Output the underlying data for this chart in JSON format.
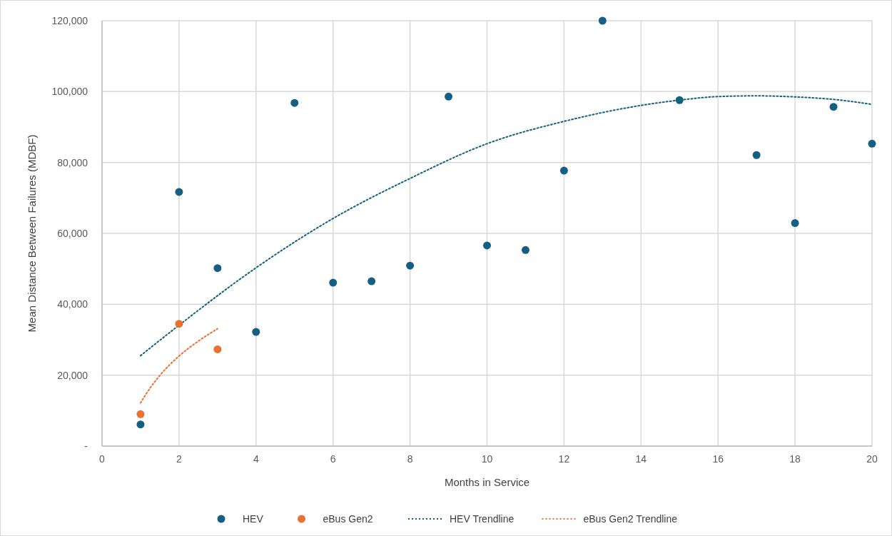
{
  "chart_data": {
    "type": "scatter",
    "xlabel": "Months in Service",
    "ylabel": "Mean Distance Between Failures (MDBF)",
    "xlim": [
      0,
      20
    ],
    "xticks": [
      0,
      2,
      4,
      6,
      8,
      10,
      12,
      14,
      16,
      18,
      20
    ],
    "ylim": [
      0,
      120000
    ],
    "yticks": [
      {
        "value": 0,
        "label": "-"
      },
      {
        "value": 20000,
        "label": "20,000"
      },
      {
        "value": 40000,
        "label": "40,000"
      },
      {
        "value": 60000,
        "label": "60,000"
      },
      {
        "value": 80000,
        "label": "80,000"
      },
      {
        "value": 100000,
        "label": "100,000"
      },
      {
        "value": 120000,
        "label": "120,000"
      }
    ],
    "grid": true,
    "legend": "bottom",
    "marker": "circle",
    "series": [
      {
        "name": "HEV",
        "color": "#156082",
        "x": [
          1,
          2,
          3,
          4,
          5,
          6,
          7,
          8,
          9,
          10,
          11,
          12,
          13,
          15,
          17,
          18,
          19,
          20
        ],
        "values": [
          6100,
          71700,
          50200,
          32200,
          96800,
          46100,
          46500,
          50900,
          98600,
          56600,
          55300,
          77700,
          120000,
          97600,
          82100,
          62900,
          95700,
          85300
        ]
      },
      {
        "name": "eBus Gen2",
        "color": "#e97132",
        "x": [
          1,
          2,
          3
        ],
        "values": [
          9000,
          34500,
          27300
        ]
      },
      {
        "name": "HEV Trendline",
        "type": "line",
        "line_style": "dotted",
        "marker": "none",
        "color": "#156082",
        "x": [
          1,
          2,
          4,
          6,
          8,
          10,
          12,
          14,
          15,
          16,
          17,
          18,
          19,
          20
        ],
        "values": [
          25500,
          34100,
          50300,
          64200,
          75500,
          85300,
          91600,
          96100,
          97600,
          98600,
          98800,
          98500,
          97800,
          96400
        ]
      },
      {
        "name": "eBus Gen2 Trendline",
        "type": "line",
        "line_style": "dotted",
        "marker": "none",
        "color": "#e97132",
        "x": [
          1,
          1.25,
          1.5,
          2,
          2.5,
          3
        ],
        "values": [
          12200,
          16400,
          19900,
          25400,
          29600,
          33100
        ]
      }
    ]
  }
}
